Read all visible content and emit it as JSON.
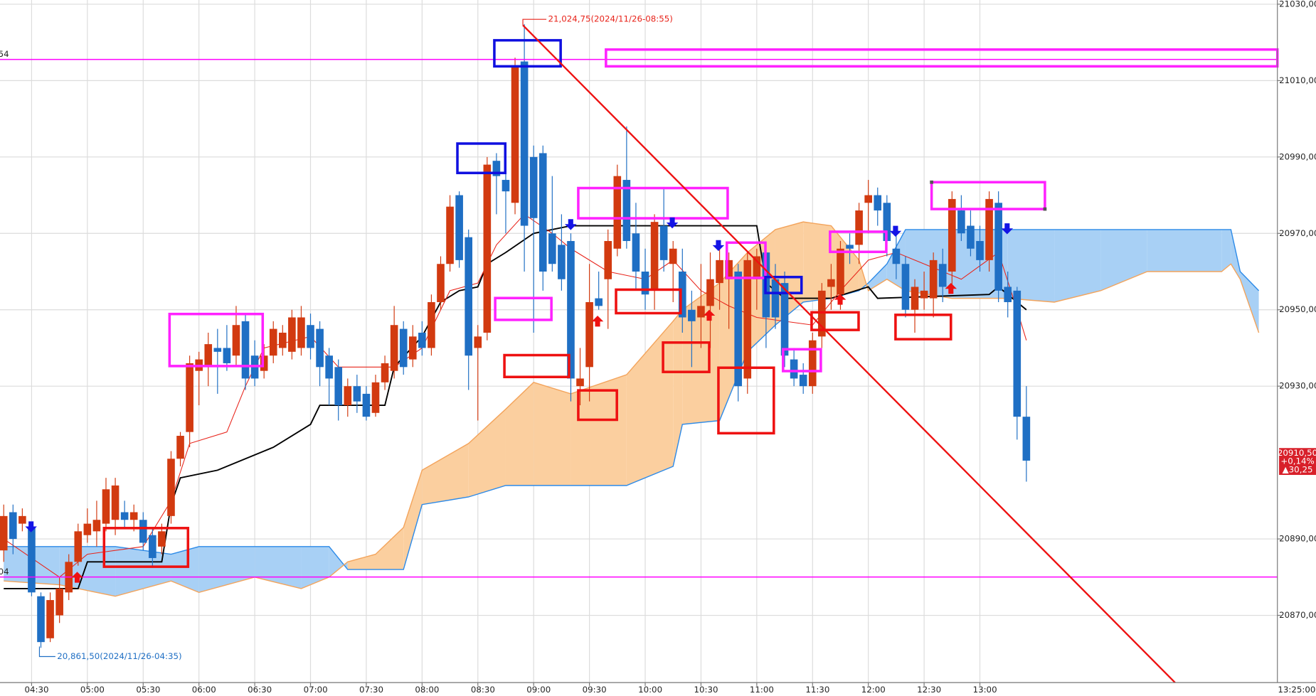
{
  "chart_data": {
    "type": "candlestick",
    "xlim": [
      "04:13",
      "15:40"
    ],
    "ylim": [
      20852.4,
      21031.1
    ],
    "yticks": [
      {
        "value": 21030,
        "label": "21030,00"
      },
      {
        "value": 21010,
        "label": "21010,00"
      },
      {
        "value": 20990,
        "label": "20990,00"
      },
      {
        "value": 20970,
        "label": "20970,00"
      },
      {
        "value": 20950,
        "label": "20950,00"
      },
      {
        "value": 20930,
        "label": "20930,00"
      },
      {
        "value": 20890,
        "label": "20890,00"
      },
      {
        "value": 20870,
        "label": "20870,00"
      }
    ],
    "xticks": [
      "04:30",
      "05:00",
      "05:30",
      "06:00",
      "06:30",
      "07:00",
      "07:30",
      "08:00",
      "08:30",
      "09:00",
      "09:30",
      "10:00",
      "10:30",
      "11:00",
      "11:30",
      "12:00",
      "12:30",
      "13:00"
    ],
    "x_end_label": "13:25:00",
    "grid": true,
    "up_color": "#d23a10",
    "down_color": "#1f6fc4",
    "x": [
      "04:15",
      "04:20",
      "04:25",
      "04:30",
      "04:35",
      "04:40",
      "04:45",
      "04:50",
      "04:55",
      "05:00",
      "05:05",
      "05:10",
      "05:15",
      "05:20",
      "05:25",
      "05:30",
      "05:35",
      "05:40",
      "05:45",
      "05:50",
      "05:55",
      "06:00",
      "06:05",
      "06:10",
      "06:15",
      "06:20",
      "06:25",
      "06:30",
      "06:35",
      "06:40",
      "06:45",
      "06:50",
      "06:55",
      "07:00",
      "07:05",
      "07:10",
      "07:15",
      "07:20",
      "07:25",
      "07:30",
      "07:35",
      "07:40",
      "07:45",
      "07:50",
      "07:55",
      "08:00",
      "08:05",
      "08:10",
      "08:15",
      "08:20",
      "08:25",
      "08:30",
      "08:35",
      "08:40",
      "08:45",
      "08:50",
      "08:55",
      "09:00",
      "09:05",
      "09:10",
      "09:15",
      "09:20",
      "09:25",
      "09:30",
      "09:35",
      "09:40",
      "09:45",
      "09:50",
      "09:55",
      "10:00",
      "10:05",
      "10:10",
      "10:15",
      "10:20",
      "10:25",
      "10:30",
      "10:35",
      "10:40",
      "10:45",
      "10:50",
      "10:55",
      "11:00",
      "11:05",
      "11:10",
      "11:15",
      "11:20",
      "11:25",
      "11:30",
      "11:35",
      "11:40",
      "11:45",
      "11:50",
      "11:55",
      "12:00",
      "12:05",
      "12:10",
      "12:15",
      "12:20",
      "12:25",
      "12:30",
      "12:35",
      "12:40",
      "12:45",
      "12:50",
      "12:55",
      "13:00",
      "13:05",
      "13:10",
      "13:15",
      "13:20",
      "13:25"
    ],
    "open": [
      20887,
      20897,
      20894,
      20893,
      20875,
      20864,
      20870,
      20876,
      20884,
      20891,
      20892,
      20894,
      20895,
      20897,
      20895,
      20895,
      20891,
      20888,
      20896,
      20911,
      20918,
      20934,
      20935,
      20940,
      20940,
      20938,
      20947,
      20938,
      20934,
      20938,
      20940,
      20939,
      20940,
      20946,
      20945,
      20938,
      20935,
      20925,
      20930,
      20928,
      20923,
      20931,
      20934,
      20945,
      20937,
      20944,
      20940,
      20952,
      20962,
      20980,
      20969,
      20940,
      20944,
      20989,
      20984,
      20978,
      21015,
      20990,
      20991,
      20970,
      20967,
      20968,
      20930,
      20935,
      20953,
      20958,
      20966,
      20984,
      20970,
      20960,
      20955,
      20972,
      20962,
      20960,
      20950,
      20948,
      20951,
      20957,
      20958,
      20960,
      20932,
      20958,
      20965,
      20958,
      20957,
      20937,
      20933,
      20930,
      20943,
      20956,
      20954,
      20967,
      20967,
      20978,
      20980,
      20978,
      20966,
      20962,
      20950,
      20953,
      20953,
      20962,
      20960,
      20976,
      20972,
      20968,
      20963,
      20978,
      20956,
      20955,
      20922
    ],
    "high": [
      20899,
      20899,
      20898,
      20894,
      20876,
      20876,
      20880,
      20886,
      20894,
      20898,
      20900,
      20906,
      20906,
      20900,
      20899,
      20897,
      20893,
      20894,
      20913,
      20918,
      20938,
      20939,
      20944,
      20945,
      20946,
      20951,
      20949,
      20942,
      20941,
      20947,
      20946,
      20950,
      20951,
      20949,
      20947,
      20940,
      20937,
      20932,
      20933,
      20930,
      20933,
      20938,
      20951,
      20947,
      20946,
      20947,
      20954,
      20964,
      20980,
      20981,
      20971,
      20946,
      20990,
      20991,
      20992,
      21016,
      21024.75,
      20993,
      20993,
      20985,
      20975,
      20970,
      20940,
      20962,
      20960,
      20971,
      20988,
      20998,
      20978,
      20966,
      20975,
      20982,
      20968,
      20966,
      20955,
      20962,
      20965,
      20968,
      20965,
      20962,
      20965,
      20966,
      20967,
      20962,
      20960,
      20940,
      20936,
      20944,
      20957,
      20962,
      20968,
      20970,
      20978,
      20984,
      20982,
      20980,
      20970,
      20964,
      20958,
      20960,
      20965,
      20966,
      20981,
      20980,
      20976,
      20972,
      20981,
      20981,
      20960,
      20956,
      20930
    ],
    "low": [
      20884,
      20886,
      20892,
      20875,
      20861.5,
      20863,
      20868,
      20874,
      20883,
      20889,
      20888,
      20892,
      20891,
      20893,
      20892,
      20887,
      20883,
      20886,
      20894,
      20909,
      20914,
      20925,
      20930,
      20928,
      20934,
      20935,
      20929,
      20930,
      20932,
      20936,
      20938,
      20937,
      20938,
      20937,
      20930,
      20925,
      20921,
      20922,
      20923,
      20921,
      20922,
      20929,
      20932,
      20933,
      20935,
      20938,
      20938,
      20950,
      20960,
      20961,
      20929,
      20921,
      20942,
      20975,
      20970,
      20975,
      20960,
      20944,
      20955,
      20960,
      20955,
      20926,
      20925,
      20926,
      20950,
      20945,
      20964,
      20966,
      20955,
      20950,
      20950,
      20960,
      20952,
      20944,
      20935,
      20940,
      20940,
      20950,
      20945,
      20926,
      20928,
      20950,
      20940,
      20945,
      20935,
      20930,
      20928,
      20928,
      20940,
      20950,
      20950,
      20962,
      20962,
      20970,
      20972,
      20964,
      20958,
      20948,
      20944,
      20950,
      20948,
      20952,
      20956,
      20968,
      20964,
      20960,
      20960,
      20952,
      20948,
      20916,
      20905
    ],
    "close": [
      20896,
      20890,
      20896,
      20876,
      20863,
      20874,
      20877,
      20884,
      20892,
      20894,
      20895,
      20903,
      20904,
      20895,
      20897,
      20889,
      20885,
      20892,
      20911,
      20917,
      20936,
      20937,
      20941,
      20939,
      20936,
      20946,
      20932,
      20932,
      20938,
      20945,
      20944,
      20948,
      20948,
      20940,
      20935,
      20932,
      20925,
      20930,
      20926,
      20922,
      20931,
      20936,
      20946,
      20935,
      20943,
      20940,
      20952,
      20962,
      20977,
      20963,
      20938,
      20943,
      20988,
      20985,
      20981,
      21014,
      20972,
      20974,
      20960,
      20962,
      20958,
      20932,
      20932,
      20952,
      20951,
      20968,
      20985,
      20968,
      20960,
      20954,
      20973,
      20963,
      20966,
      20948,
      20947,
      20951,
      20958,
      20963,
      20963,
      20930,
      20963,
      20964,
      20948,
      20948,
      20938,
      20932,
      20930,
      20942,
      20955,
      20958,
      20966,
      20966,
      20976,
      20980,
      20976,
      20968,
      20962,
      20950,
      20956,
      20955,
      20963,
      20956,
      20979,
      20970,
      20966,
      20963,
      20979,
      20955,
      20952,
      20922,
      20910.5
    ],
    "lines": [
      {
        "name": "base",
        "color": "#000000",
        "x": [
          "04:15",
          "04:55",
          "05:00",
          "05:40",
          "05:45",
          "05:50",
          "06:10",
          "06:20",
          "06:40",
          "07:00",
          "07:05",
          "07:40",
          "07:45",
          "08:00",
          "08:10",
          "08:20",
          "08:30",
          "08:35",
          "08:45",
          "09:00",
          "09:20",
          "11:00",
          "11:05",
          "11:15",
          "11:40",
          "12:00",
          "12:05",
          "13:05",
          "13:10",
          "13:25"
        ],
        "values": [
          20877,
          20877,
          20884,
          20884,
          20899,
          20906,
          20908,
          20910,
          20914,
          20920,
          20925,
          20925,
          20935,
          20943,
          20952,
          20955,
          20956,
          20962,
          20965,
          20970,
          20972,
          20972,
          20957,
          20953,
          20953,
          20956,
          20953,
          20954,
          20956,
          20950
        ]
      },
      {
        "name": "conversion",
        "color": "#e8231a",
        "x": [
          "04:15",
          "04:45",
          "05:00",
          "05:30",
          "05:45",
          "05:55",
          "06:15",
          "06:25",
          "06:35",
          "07:00",
          "07:15",
          "07:45",
          "08:00",
          "08:15",
          "08:30",
          "08:40",
          "08:55",
          "09:10",
          "09:20",
          "09:40",
          "10:00",
          "10:15",
          "10:30",
          "10:45",
          "11:00",
          "11:15",
          "11:30",
          "11:45",
          "12:00",
          "12:15",
          "12:30",
          "12:50",
          "13:10",
          "13:20",
          "13:25"
        ],
        "values": [
          20890,
          20880,
          20886,
          20888,
          20900,
          20915,
          20918,
          20930,
          20940,
          20943,
          20935,
          20935,
          20940,
          20955,
          20957,
          20967,
          20975,
          20970,
          20966,
          20960,
          20958,
          20963,
          20955,
          20951,
          20948,
          20947,
          20946,
          20955,
          20963,
          20965,
          20962,
          20958,
          20965,
          20950,
          20942
        ]
      }
    ],
    "cloud": {
      "x": [
        "04:15",
        "04:45",
        "05:15",
        "05:45",
        "06:00",
        "06:30",
        "06:55",
        "07:10",
        "07:20",
        "07:35",
        "07:50",
        "08:00",
        "08:25",
        "08:45",
        "09:00",
        "09:20",
        "09:50",
        "10:15",
        "10:20",
        "10:40",
        "10:55",
        "11:10",
        "11:25",
        "11:40",
        "11:55",
        "12:00",
        "12:10",
        "12:20",
        "12:45",
        "13:15",
        "13:40",
        "14:05",
        "14:30",
        "15:10",
        "15:15",
        "15:20",
        "15:30"
      ],
      "series": [
        {
          "name": "span1",
          "color": "#2c8ae8",
          "values": [
            20888,
            20888,
            20888,
            20886,
            20888,
            20888,
            20888,
            20888,
            20882,
            20882,
            20882,
            20899,
            20901,
            20904,
            20904,
            20904,
            20904,
            20909,
            20920,
            20921,
            20939,
            20946,
            20952,
            20953,
            20955,
            20957,
            20962,
            20971,
            20971,
            20971,
            20971,
            20971,
            20971,
            20971,
            20971,
            20960,
            20955
          ]
        },
        {
          "name": "span2",
          "color": "#f3a45c",
          "values": [
            20879,
            20878,
            20875,
            20879,
            20876,
            20880,
            20877,
            20880,
            20884,
            20886,
            20893,
            20908,
            20915,
            20924,
            20931,
            20928,
            20933,
            20947,
            20950,
            20957,
            20965,
            20971,
            20973,
            20972,
            20963,
            20955,
            20958,
            20955,
            20953,
            20953,
            20952,
            20955,
            20960,
            20960,
            20962,
            20958,
            20944
          ]
        }
      ],
      "up_fill": "#a8d0f5",
      "down_fill": "#fbcf9f"
    },
    "hlines": [
      {
        "value": 21015.54,
        "label": "54"
      },
      {
        "value": 20880.04,
        "label": "04"
      }
    ],
    "hline_color": "#ff00ff",
    "annotations": {
      "high": "21,024,75(2024/11/26-08:55)",
      "low": "20,861,50(2024/11/26-04:35)"
    },
    "price_tag": {
      "value": {
        "value": 20910.5,
        "label": "20910,50"
      },
      "change_pct": "+0,14%",
      "change": "▲30,25"
    }
  }
}
